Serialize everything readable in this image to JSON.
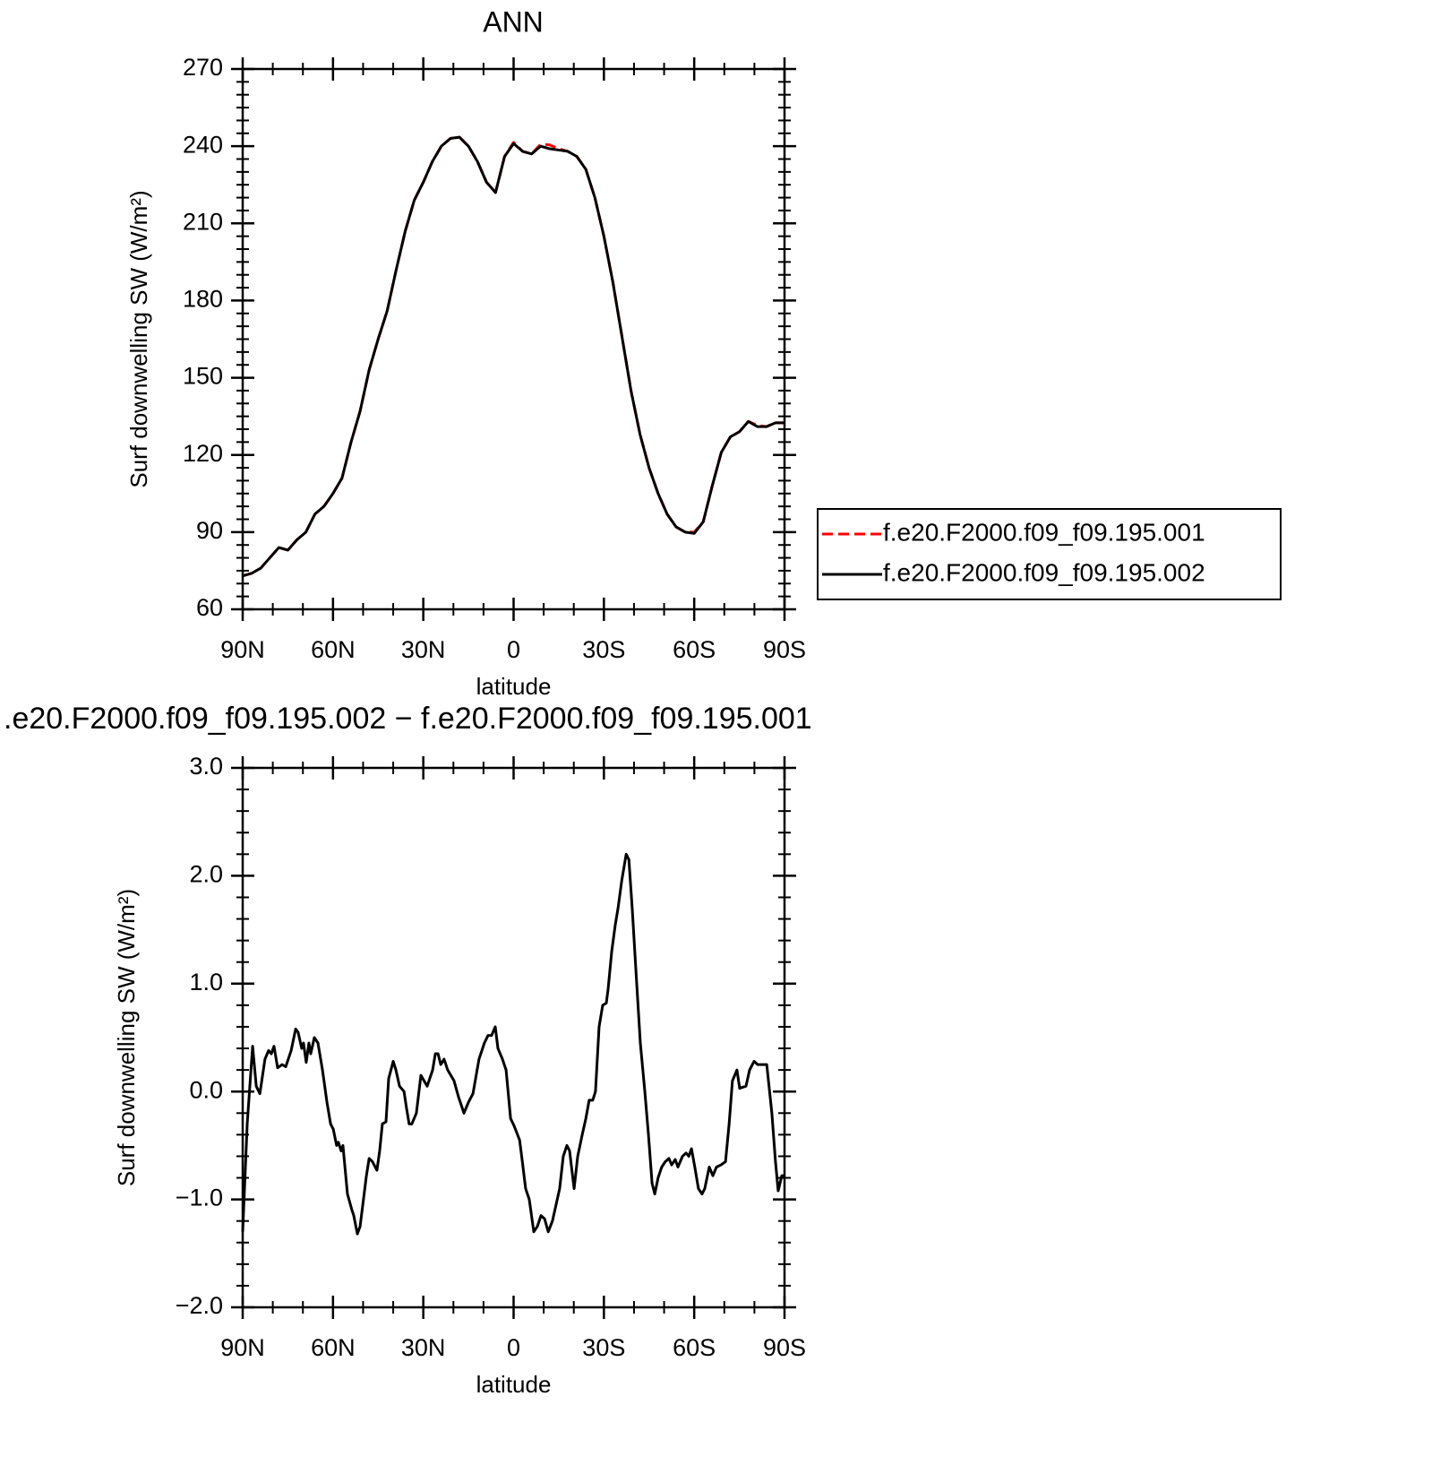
{
  "chart_data": [
    {
      "type": "line",
      "title": "ANN",
      "xlabel": "latitude",
      "ylabel": "Surf downwelling SW (W/m²)",
      "xlim": [
        90,
        -90
      ],
      "ylim": [
        60,
        270
      ],
      "xticks": [
        {
          "value": 90,
          "label": "90N"
        },
        {
          "value": 60,
          "label": "60N"
        },
        {
          "value": 30,
          "label": "30N"
        },
        0,
        {
          "value": -30,
          "label": "30S"
        },
        {
          "value": -60,
          "label": "60S"
        },
        {
          "value": -90,
          "label": "90S"
        }
      ],
      "yticks": [
        60,
        90,
        120,
        150,
        180,
        210,
        240,
        270
      ],
      "minor_xticks": [
        80,
        70,
        50,
        40,
        20,
        10,
        -10,
        -20,
        -40,
        -50,
        -70,
        -80
      ],
      "minor_yticks": [
        65,
        70,
        75,
        80,
        85,
        95,
        100,
        105,
        110,
        115,
        125,
        130,
        135,
        140,
        145,
        155,
        160,
        165,
        170,
        175,
        185,
        190,
        195,
        200,
        205,
        215,
        220,
        225,
        230,
        235,
        245,
        250,
        255,
        260,
        265
      ],
      "legend": "outside-right",
      "x": [
        90,
        87,
        84,
        81,
        78,
        75,
        72,
        69,
        66,
        63,
        60,
        57,
        54,
        51,
        48,
        45,
        42,
        39,
        36,
        33,
        30,
        27,
        24,
        21,
        18,
        15,
        12,
        9,
        6,
        3,
        0,
        -3,
        -6,
        -9,
        -12,
        -15,
        -18,
        -21,
        -24,
        -27,
        -30,
        -33,
        -36,
        -39,
        -42,
        -45,
        -48,
        -51,
        -54,
        -57,
        -60,
        -63,
        -66,
        -69,
        -72,
        -75,
        -78,
        -81,
        -84,
        -87,
        -90
      ],
      "series": [
        {
          "name": "f.e20.F2000.f09_f09.195.001",
          "color": "#ff0000",
          "dash": true,
          "values": [
            73,
            74,
            76,
            80,
            84,
            83,
            87,
            90,
            97,
            100,
            105,
            111,
            125,
            137,
            153,
            165,
            176,
            192,
            207,
            219,
            226,
            234,
            240,
            243,
            243.5,
            240,
            234,
            226,
            222,
            236,
            241.5,
            238,
            237,
            240.8,
            240.5,
            239,
            238,
            236,
            231,
            220,
            205,
            187,
            166,
            145,
            128,
            115,
            105,
            97,
            92,
            90,
            90,
            94,
            108,
            121,
            127,
            129,
            133,
            131.5,
            131,
            132.5,
            132.5
          ]
        },
        {
          "name": "f.e20.F2000.f09_f09.195.002",
          "color": "#000000",
          "dash": false,
          "values": [
            73,
            74,
            76,
            80,
            84,
            83,
            87,
            90,
            97,
            100,
            105,
            111,
            125,
            137,
            153,
            165,
            176,
            192,
            207,
            219,
            226,
            234,
            240,
            243,
            243.5,
            240,
            234,
            226,
            222,
            236,
            241,
            238,
            237,
            240,
            239,
            238.5,
            238,
            236,
            231,
            220,
            205,
            187,
            166,
            145,
            128,
            115,
            105,
            97,
            92,
            90,
            89.5,
            94,
            108,
            121,
            127,
            129,
            133,
            131,
            131,
            132.5,
            132.5
          ]
        }
      ]
    },
    {
      "type": "line",
      "title": ".e20.F2000.f09_f09.195.002 − f.e20.F2000.f09_f09.195.001",
      "xlabel": "latitude",
      "ylabel": "Surf downwelling SW (W/m²)",
      "xlim": [
        90,
        -90
      ],
      "ylim": [
        -2,
        3
      ],
      "xticks": [
        {
          "value": 90,
          "label": "90N"
        },
        {
          "value": 60,
          "label": "60N"
        },
        {
          "value": 30,
          "label": "30N"
        },
        0,
        {
          "value": -30,
          "label": "30S"
        },
        {
          "value": -60,
          "label": "60S"
        },
        {
          "value": -90,
          "label": "90S"
        }
      ],
      "yticks": [
        {
          "value": -2,
          "label": "−2.0"
        },
        {
          "value": -1,
          "label": "−1.0"
        },
        {
          "value": 0,
          "label": "0.0"
        },
        {
          "value": 1,
          "label": "1.0"
        },
        {
          "value": 2,
          "label": "2.0"
        },
        {
          "value": 3,
          "label": "3.0"
        }
      ],
      "minor_xticks": [
        80,
        70,
        50,
        40,
        20,
        10,
        -10,
        -20,
        -40,
        -50,
        -70,
        -80
      ],
      "minor_yticks": [
        -1.8,
        -1.6,
        -1.4,
        -1.2,
        -0.8,
        -0.6,
        -0.4,
        -0.2,
        0.2,
        0.4,
        0.6,
        0.8,
        1.2,
        1.4,
        1.6,
        1.8,
        2.2,
        2.4,
        2.6,
        2.8
      ],
      "x": [
        90,
        88.5,
        86.7,
        85.5,
        84.3,
        82.6,
        81.4,
        80.5,
        79.6,
        78.4,
        76.9,
        75.7,
        73.9,
        72.4,
        71.6,
        70.4,
        69.8,
        68.9,
        68.0,
        67.4,
        66.2,
        65.0,
        63.5,
        62.0,
        60.8,
        59.9,
        58.8,
        58.2,
        57.3,
        56.7,
        55.2,
        53.7,
        53.1,
        51.9,
        51.0,
        50.1,
        48.9,
        48.0,
        46.9,
        45.4,
        44.5,
        43.6,
        42.4,
        41.5,
        40.0,
        39.1,
        37.9,
        36.4,
        35.6,
        34.7,
        33.8,
        32.3,
        30.8,
        28.7,
        26.9,
        26.0,
        25.1,
        24.2,
        23.1,
        21.9,
        19.8,
        18.3,
        16.5,
        15.0,
        13.5,
        11.5,
        9.7,
        8.5,
        7.3,
        6.1,
        5.2,
        3.7,
        2.5,
        1.0,
        -0.2,
        -2.0,
        -2.9,
        -4.0,
        -5.2,
        -6.7,
        -7.9,
        -9.1,
        -10.3,
        -11.5,
        -12.9,
        -14.1,
        -15.3,
        -16.5,
        -17.7,
        -18.6,
        -20.1,
        -21.3,
        -22.8,
        -24.0,
        -25.1,
        -26.3,
        -27.2,
        -28.4,
        -29.6,
        -30.8,
        -31.4,
        -32.6,
        -33.8,
        -34.7,
        -35.9,
        -37.4,
        -38.3,
        -39.4,
        -40.9,
        -42.1,
        -43.6,
        -44.8,
        -46.0,
        -46.9,
        -48.0,
        -49.2,
        -50.4,
        -51.6,
        -52.5,
        -53.7,
        -54.6,
        -56.1,
        -57.3,
        -58.2,
        -59.1,
        -60.2,
        -61.4,
        -62.6,
        -63.5,
        -65.0,
        -66.2,
        -67.4,
        -68.9,
        -70.4,
        -71.6,
        -72.7,
        -74.2,
        -75.1,
        -77.2,
        -78.4,
        -79.9,
        -81.1,
        -82.6,
        -84.1,
        -85.8,
        -87.0,
        -87.9,
        -89.1,
        -90
      ],
      "series": [
        {
          "color": "#000000",
          "dash": false,
          "values": [
            -1.3,
            -0.3,
            0.42,
            0.05,
            -0.02,
            0.3,
            0.38,
            0.35,
            0.42,
            0.22,
            0.25,
            0.23,
            0.38,
            0.58,
            0.55,
            0.4,
            0.45,
            0.27,
            0.45,
            0.35,
            0.5,
            0.45,
            0.2,
            -0.1,
            -0.3,
            -0.35,
            -0.5,
            -0.47,
            -0.55,
            -0.5,
            -0.95,
            -1.1,
            -1.15,
            -1.32,
            -1.25,
            -1.05,
            -0.78,
            -0.62,
            -0.65,
            -0.73,
            -0.55,
            -0.3,
            -0.28,
            0.12,
            0.28,
            0.2,
            0.05,
            0.0,
            -0.15,
            -0.3,
            -0.3,
            -0.2,
            0.15,
            0.05,
            0.2,
            0.35,
            0.35,
            0.25,
            0.3,
            0.2,
            0.1,
            -0.05,
            -0.2,
            -0.1,
            -0.02,
            0.3,
            0.45,
            0.52,
            0.52,
            0.6,
            0.4,
            0.3,
            0.2,
            -0.25,
            -0.32,
            -0.45,
            -0.65,
            -0.9,
            -1.0,
            -1.3,
            -1.25,
            -1.15,
            -1.18,
            -1.3,
            -1.2,
            -1.05,
            -0.9,
            -0.6,
            -0.5,
            -0.55,
            -0.9,
            -0.6,
            -0.4,
            -0.25,
            -0.08,
            -0.08,
            0.0,
            0.6,
            0.8,
            0.82,
            0.95,
            1.3,
            1.55,
            1.7,
            1.95,
            2.2,
            2.15,
            1.7,
            1.0,
            0.45,
            0.0,
            -0.4,
            -0.85,
            -0.95,
            -0.8,
            -0.7,
            -0.65,
            -0.62,
            -0.68,
            -0.63,
            -0.7,
            -0.6,
            -0.57,
            -0.6,
            -0.53,
            -0.7,
            -0.9,
            -0.95,
            -0.9,
            -0.7,
            -0.78,
            -0.7,
            -0.68,
            -0.65,
            -0.3,
            0.1,
            0.2,
            0.03,
            0.05,
            0.2,
            0.28,
            0.25,
            0.25,
            0.25,
            -0.2,
            -0.65,
            -0.92,
            -0.78,
            -0.78
          ]
        }
      ]
    }
  ]
}
